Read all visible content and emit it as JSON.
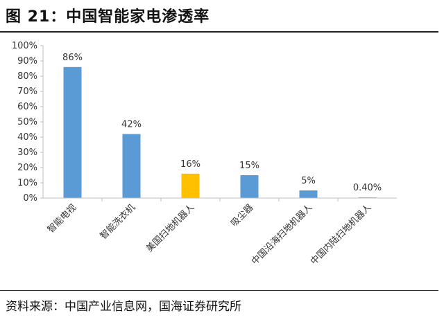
{
  "header": {
    "title": "图 21：中国智能家电渗透率"
  },
  "footer": {
    "source": "资料来源：中国产业信息网，国海证券研究所"
  },
  "colors": {
    "bar": "#5b9bd5",
    "highlight": "#ffc000",
    "axis": "#bfbfbf",
    "text": "#333333"
  },
  "chart_data": {
    "type": "bar",
    "title": "",
    "xlabel": "",
    "ylabel": "",
    "ylim": [
      0,
      100
    ],
    "yticks": [
      "0%",
      "10%",
      "20%",
      "30%",
      "40%",
      "50%",
      "60%",
      "70%",
      "80%",
      "90%",
      "100%"
    ],
    "categories": [
      "智能电视",
      "智能洗衣机",
      "美国扫地机器人",
      "吸尘器",
      "中国沿海扫地机器人",
      "中国内陆扫地机器人"
    ],
    "values": [
      86,
      42,
      16,
      15,
      5,
      0.4
    ],
    "data_labels": [
      "86%",
      "42%",
      "16%",
      "15%",
      "5%",
      "0.40%"
    ],
    "highlight_index": 2,
    "grid": false,
    "legend": "none"
  }
}
